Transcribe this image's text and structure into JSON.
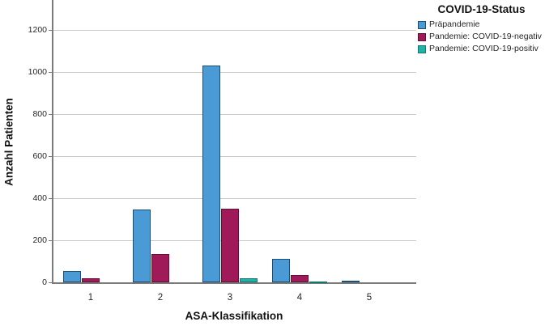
{
  "chart_data": {
    "type": "bar",
    "title": "",
    "xlabel": "ASA-Klassifikation",
    "ylabel": "Anzahl Patienten",
    "categories": [
      "1",
      "2",
      "3",
      "4",
      "5"
    ],
    "series": [
      {
        "name": "Präpandemie",
        "color": "#4A9AD5",
        "border": "#1C4F75",
        "values": [
          55,
          348,
          1030,
          110,
          6
        ]
      },
      {
        "name": "Pandemie: COVID-19-negativ",
        "color": "#A01A5A",
        "border": "#611038",
        "values": [
          18,
          133,
          350,
          34,
          0
        ]
      },
      {
        "name": "Pandemie: COVID-19-positiv",
        "color": "#21B2A7",
        "border": "#0F7A72",
        "values": [
          0,
          0,
          20,
          5,
          0
        ]
      }
    ],
    "y_ticks": [
      0,
      200,
      400,
      600,
      800,
      1000,
      1200
    ],
    "ylim": [
      0,
      1345
    ],
    "grid": true,
    "legend_title": "COVID-19-Status",
    "legend_position": "top-right",
    "colors": {
      "gridline": "#cbcbcb",
      "axis": "#7a7a7a",
      "text": "#262626"
    }
  }
}
